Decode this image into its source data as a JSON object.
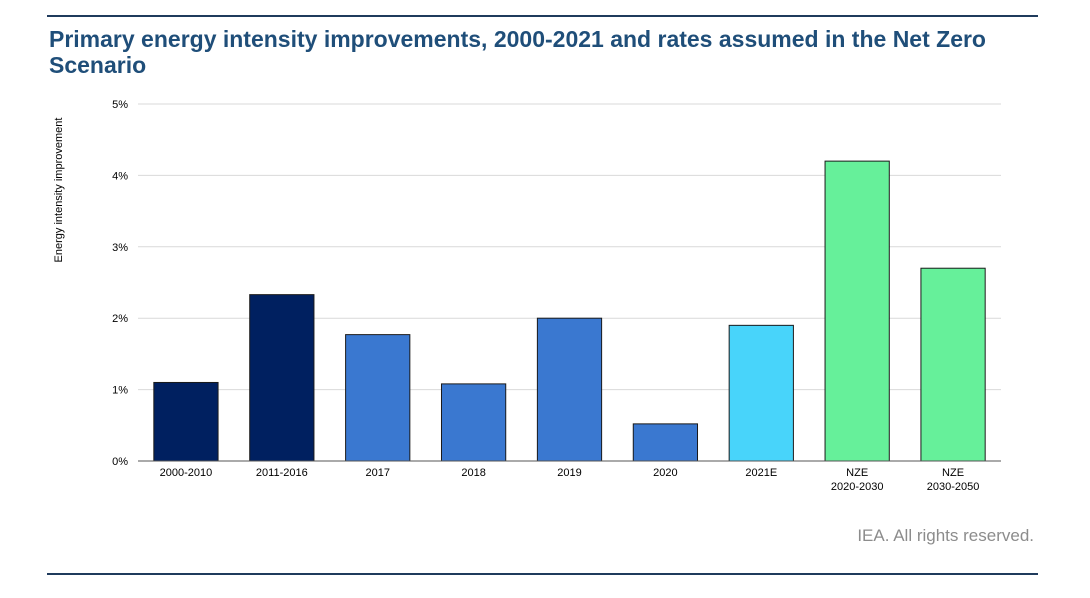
{
  "title": "Primary energy intensity improvements, 2000-2021 and rates assumed in the Net Zero Scenario",
  "credit": "IEA. All rights reserved.",
  "chart_data": {
    "type": "bar",
    "title": "Primary energy intensity improvements, 2000-2021 and rates assumed in the Net Zero Scenario",
    "ylabel": "Energy intensity improvement",
    "xlabel": "",
    "ylim": [
      0,
      5
    ],
    "yticks": [
      "0%",
      "1%",
      "2%",
      "3%",
      "4%",
      "5%"
    ],
    "grid": true,
    "legend": "none",
    "categories": [
      [
        "2000-2010"
      ],
      [
        "2011-2016"
      ],
      [
        "2017"
      ],
      [
        "2018"
      ],
      [
        "2019"
      ],
      [
        "2020"
      ],
      [
        "2021E"
      ],
      [
        "NZE",
        "2020-2030"
      ],
      [
        "NZE",
        "2030-2050"
      ]
    ],
    "values": [
      1.1,
      2.33,
      1.77,
      1.08,
      2.0,
      0.52,
      1.9,
      4.2,
      2.7
    ],
    "colors": [
      "#002060",
      "#002060",
      "#3a78d0",
      "#3a78d0",
      "#3a78d0",
      "#3a78d0",
      "#48d4fa",
      "#66f09a",
      "#66f09a"
    ]
  }
}
